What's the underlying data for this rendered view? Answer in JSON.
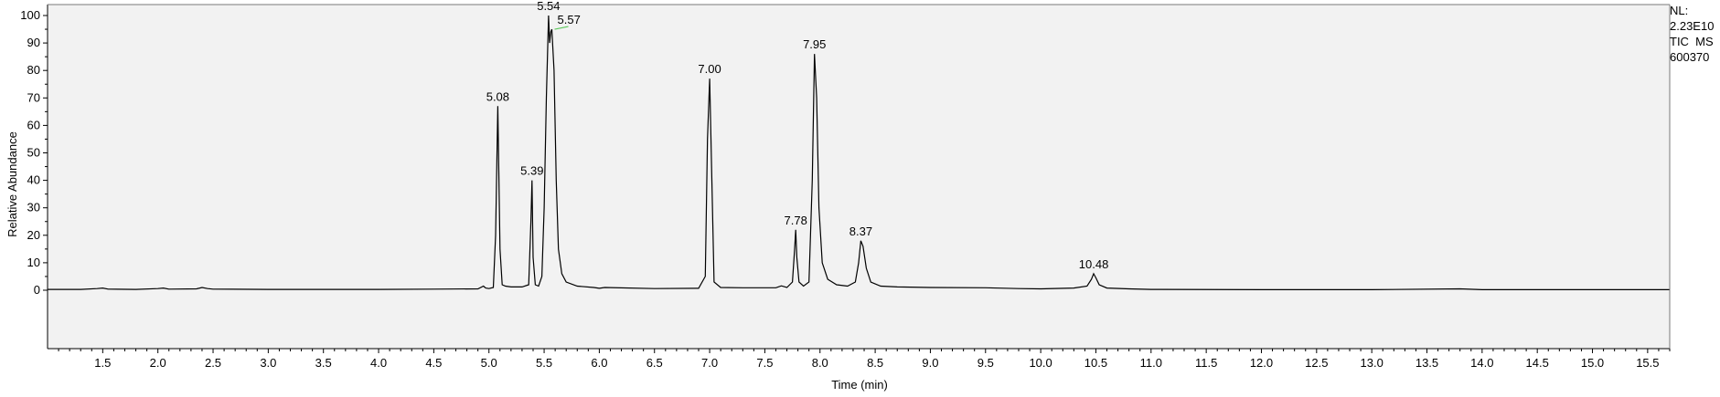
{
  "side_info": {
    "nl_label": "NL:",
    "nl_value": "2.23E10",
    "trace": "TIC  MS",
    "sample": "600370"
  },
  "chart_data": {
    "type": "line",
    "title": "",
    "xlabel": "Time (min)",
    "ylabel": "Relative Abundance",
    "xlim": [
      1.0,
      15.7
    ],
    "ylim": [
      0,
      100
    ],
    "x_ticks": [
      1.5,
      2.0,
      2.5,
      3.0,
      3.5,
      4.0,
      4.5,
      5.0,
      5.5,
      6.0,
      6.5,
      7.0,
      7.5,
      8.0,
      8.5,
      9.0,
      9.5,
      10.0,
      10.5,
      11.0,
      11.5,
      12.0,
      12.5,
      13.0,
      13.5,
      14.0,
      14.5,
      15.0,
      15.5
    ],
    "x_tick_labels": [
      "1.5",
      "2.0",
      "2.5",
      "3.0",
      "3.5",
      "4.0",
      "4.5",
      "5.0",
      "5.5",
      "6.0",
      "6.5",
      "7.0",
      "7.5",
      "8.0",
      "8.5",
      "9.0",
      "9.5",
      "10.0",
      "10.5",
      "11.0",
      "11.5",
      "12.0",
      "12.5",
      "13.0",
      "13.5",
      "14.0",
      "14.5",
      "15.0",
      "15.5"
    ],
    "y_ticks": [
      0,
      10,
      20,
      30,
      40,
      50,
      60,
      70,
      80,
      90,
      100
    ],
    "y_tick_labels": [
      "0",
      "10",
      "20",
      "30",
      "40",
      "50",
      "60",
      "70",
      "80",
      "90",
      "100"
    ],
    "grid": false,
    "background": "#f2f2f2",
    "line_color": "#000000",
    "peaks": [
      {
        "label": "5.08",
        "x": 5.08,
        "y": 67
      },
      {
        "label": "5.39",
        "x": 5.39,
        "y": 40
      },
      {
        "label": "5.54",
        "x": 5.54,
        "y": 100
      },
      {
        "label": "5.57",
        "x": 5.57,
        "y": 95
      },
      {
        "label": "7.00",
        "x": 7.0,
        "y": 77
      },
      {
        "label": "7.78",
        "x": 7.78,
        "y": 22
      },
      {
        "label": "7.95",
        "x": 7.95,
        "y": 86
      },
      {
        "label": "8.37",
        "x": 8.37,
        "y": 18
      },
      {
        "label": "10.48",
        "x": 10.48,
        "y": 6
      }
    ],
    "series": [
      {
        "x": [
          1.0,
          1.3,
          1.45,
          1.5,
          1.55,
          1.8,
          2.0,
          2.05,
          2.1,
          2.35,
          2.4,
          2.45,
          2.5,
          3.0,
          3.5,
          4.0,
          4.5,
          4.9,
          4.95,
          4.97,
          5.0,
          5.04,
          5.06,
          5.08,
          5.1,
          5.12,
          5.15,
          5.2,
          5.3,
          5.36,
          5.38,
          5.39,
          5.4,
          5.42,
          5.45,
          5.48,
          5.5,
          5.52,
          5.54,
          5.55,
          5.56,
          5.57,
          5.59,
          5.61,
          5.63,
          5.66,
          5.7,
          5.8,
          5.95,
          6.0,
          6.05,
          6.5,
          6.9,
          6.96,
          6.98,
          7.0,
          7.02,
          7.04,
          7.1,
          7.3,
          7.6,
          7.65,
          7.7,
          7.75,
          7.77,
          7.78,
          7.79,
          7.81,
          7.85,
          7.9,
          7.93,
          7.95,
          7.97,
          7.99,
          8.02,
          8.07,
          8.15,
          8.25,
          8.32,
          8.35,
          8.37,
          8.39,
          8.42,
          8.46,
          8.55,
          8.7,
          9.0,
          9.5,
          9.8,
          10.0,
          10.3,
          10.42,
          10.46,
          10.48,
          10.5,
          10.53,
          10.6,
          10.8,
          11.0,
          12.0,
          13.0,
          13.8,
          14.0,
          15.0,
          15.7
        ],
        "y": [
          0.3,
          0.3,
          0.6,
          0.8,
          0.4,
          0.3,
          0.6,
          0.8,
          0.4,
          0.5,
          1.0,
          0.6,
          0.4,
          0.3,
          0.3,
          0.3,
          0.4,
          0.5,
          1.5,
          0.8,
          0.6,
          1.0,
          20,
          67,
          15,
          2,
          1.5,
          1.2,
          1.2,
          2,
          25,
          40,
          12,
          2,
          1.5,
          5,
          30,
          70,
          100,
          90,
          94,
          95,
          80,
          40,
          15,
          6,
          3,
          1.5,
          1.0,
          0.7,
          1.0,
          0.6,
          0.7,
          5,
          55,
          77,
          40,
          3,
          1.0,
          0.9,
          0.9,
          1.6,
          1.0,
          3,
          15,
          22,
          12,
          3,
          1.5,
          3,
          40,
          86,
          70,
          30,
          10,
          4,
          2,
          1.5,
          3,
          10,
          18,
          16,
          8,
          3,
          1.5,
          1.2,
          1.0,
          0.9,
          0.6,
          0.5,
          0.8,
          1.5,
          4,
          6,
          4.5,
          2,
          0.8,
          0.5,
          0.3,
          0.2,
          0.2,
          0.5,
          0.2,
          0.2,
          0.2
        ]
      }
    ]
  }
}
